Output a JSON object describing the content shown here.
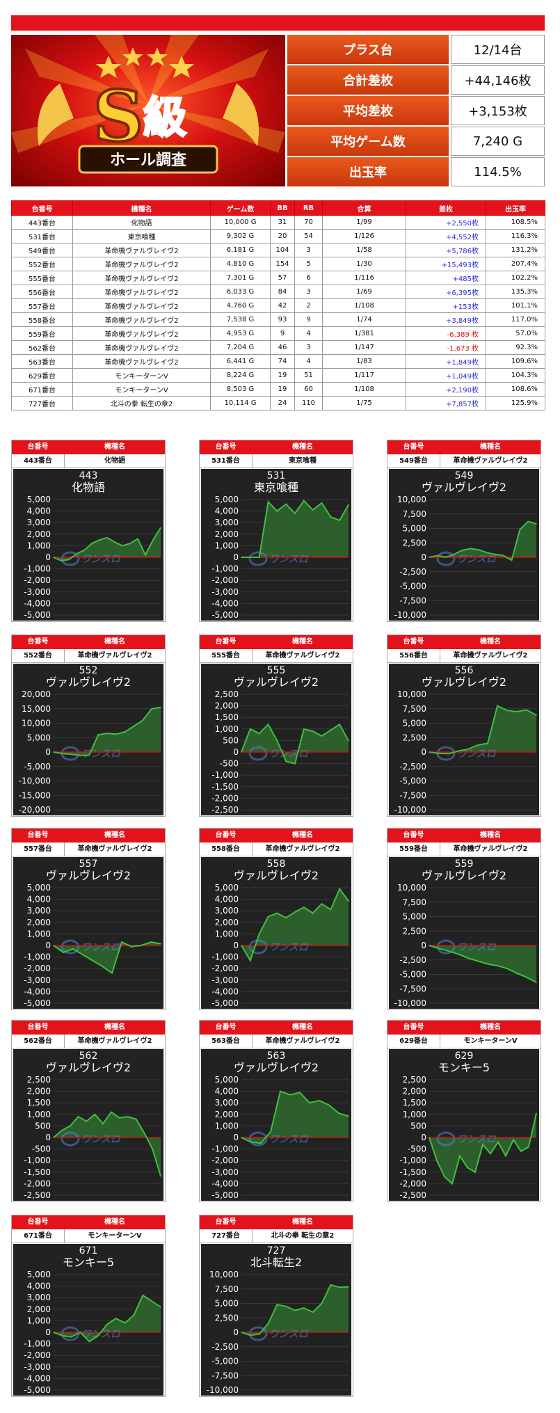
{
  "header": {
    "logo_letter": "S",
    "logo_kanji": "級",
    "logo_ribbon": "ホール調査"
  },
  "stats": [
    {
      "label": "プラス台",
      "value": "12/14台"
    },
    {
      "label": "合計差枚",
      "value": "+44,146枚"
    },
    {
      "label": "平均差枚",
      "value": "+3,153枚"
    },
    {
      "label": "平均ゲーム数",
      "value": "7,240 G"
    },
    {
      "label": "出玉率",
      "value": "114.5%"
    }
  ],
  "table": {
    "headers": [
      "台番号",
      "機種名",
      "ゲーム数",
      "BB",
      "RB",
      "合算",
      "差枚",
      "出玉率"
    ],
    "rows": [
      {
        "num": "443番台",
        "name": "化物語",
        "games": "10,000 G",
        "bb": "31",
        "rb": "70",
        "combined": "1/99",
        "diff": "+2,550枚",
        "rate": "108.5%"
      },
      {
        "num": "531番台",
        "name": "東京喰種",
        "games": "9,302 G",
        "bb": "20",
        "rb": "54",
        "combined": "1/126",
        "diff": "+4,552枚",
        "rate": "116.3%"
      },
      {
        "num": "549番台",
        "name": "革命機ヴァルヴレイヴ2",
        "games": "6,181 G",
        "bb": "104",
        "rb": "3",
        "combined": "1/58",
        "diff": "+5,786枚",
        "rate": "131.2%"
      },
      {
        "num": "552番台",
        "name": "革命機ヴァルヴレイヴ2",
        "games": "4,810 G",
        "bb": "154",
        "rb": "5",
        "combined": "1/30",
        "diff": "+15,493枚",
        "rate": "207.4%"
      },
      {
        "num": "555番台",
        "name": "革命機ヴァルヴレイヴ2",
        "games": "7,301 G",
        "bb": "57",
        "rb": "6",
        "combined": "1/116",
        "diff": "+485枚",
        "rate": "102.2%"
      },
      {
        "num": "556番台",
        "name": "革命機ヴァルヴレイヴ2",
        "games": "6,033 G",
        "bb": "84",
        "rb": "3",
        "combined": "1/69",
        "diff": "+6,395枚",
        "rate": "135.3%"
      },
      {
        "num": "557番台",
        "name": "革命機ヴァルヴレイヴ2",
        "games": "4,760 G",
        "bb": "42",
        "rb": "2",
        "combined": "1/108",
        "diff": "+153枚",
        "rate": "101.1%"
      },
      {
        "num": "558番台",
        "name": "革命機ヴァルヴレイヴ2",
        "games": "7,538 G",
        "bb": "93",
        "rb": "9",
        "combined": "1/74",
        "diff": "+3,849枚",
        "rate": "117.0%"
      },
      {
        "num": "559番台",
        "name": "革命機ヴァルヴレイヴ2",
        "games": "4,953 G",
        "bb": "9",
        "rb": "4",
        "combined": "1/381",
        "diff": "-6,389 枚",
        "rate": "57.0%"
      },
      {
        "num": "562番台",
        "name": "革命機ヴァルヴレイヴ2",
        "games": "7,204 G",
        "bb": "46",
        "rb": "3",
        "combined": "1/147",
        "diff": "-1,673 枚",
        "rate": "92.3%"
      },
      {
        "num": "563番台",
        "name": "革命機ヴァルヴレイヴ2",
        "games": "6,441 G",
        "bb": "74",
        "rb": "4",
        "combined": "1/83",
        "diff": "+1,849枚",
        "rate": "109.6%"
      },
      {
        "num": "629番台",
        "name": "モンキーターンV",
        "games": "8,224 G",
        "bb": "19",
        "rb": "51",
        "combined": "1/117",
        "diff": "+1,049枚",
        "rate": "104.3%"
      },
      {
        "num": "671番台",
        "name": "モンキーターンV",
        "games": "8,503 G",
        "bb": "19",
        "rb": "60",
        "combined": "1/108",
        "diff": "+2,190枚",
        "rate": "108.6%"
      },
      {
        "num": "727番台",
        "name": "北斗の拳 転生の章2",
        "games": "10,114 G",
        "bb": "24",
        "rb": "110",
        "combined": "1/75",
        "diff": "+7,857枚",
        "rate": "125.9%"
      }
    ]
  },
  "card_headers": {
    "num": "台番号",
    "name": "機種名"
  },
  "watermark": "ワンスロ",
  "colors": {
    "accent_red": "#e4131b",
    "header_orange": "#e0501a",
    "chart_bg": "#222222",
    "line_green": "#3fbf3f",
    "fill_green": "#2f6a2f",
    "zero_line": "#d01010",
    "positive_text": "#2a2ad0",
    "negative_text": "#e01010"
  },
  "chart_data": [
    {
      "type": "area",
      "num": "443番台",
      "name": "化物語",
      "title_num": "443",
      "title_name": "化物語",
      "ylim": [
        -5000,
        5000
      ],
      "yticks": [
        5000,
        4000,
        3000,
        2000,
        1000,
        0,
        -1000,
        -2000,
        -3000,
        -4000,
        -5000
      ],
      "ytick_labels": [
        "5,000",
        "4,000",
        "3,000",
        "2,000",
        "1,000",
        "0",
        "-1,000",
        "-2,000",
        "-3,000",
        "-4,000",
        "-5,000"
      ],
      "values": [
        0,
        -300,
        -200,
        300,
        600,
        1200,
        1500,
        1700,
        1300,
        1000,
        1200,
        1600,
        200,
        1500,
        2550
      ]
    },
    {
      "type": "area",
      "num": "531番台",
      "name": "東京喰種",
      "title_num": "531",
      "title_name": "東京喰種",
      "ylim": [
        -5000,
        5000
      ],
      "yticks": [
        5000,
        4000,
        3000,
        2000,
        1000,
        0,
        -1000,
        -2000,
        -3000,
        -4000,
        -5000
      ],
      "ytick_labels": [
        "5,000",
        "4,000",
        "3,000",
        "2,000",
        "1,000",
        "0",
        "-1,000",
        "-2,000",
        "-3,000",
        "-4,000",
        "-5,000"
      ],
      "values": [
        0,
        0,
        0,
        4800,
        4000,
        4600,
        3800,
        4900,
        4100,
        4700,
        3500,
        3200,
        4552
      ]
    },
    {
      "type": "area",
      "num": "549番台",
      "name": "革命機ヴァルヴレイヴ2",
      "title_num": "549",
      "title_name": "ヴァルヴレイヴ2",
      "ylim": [
        -10000,
        10000
      ],
      "yticks": [
        10000,
        7500,
        5000,
        2500,
        0,
        -2500,
        -5000,
        -7500,
        -10000
      ],
      "ytick_labels": [
        "10,000",
        "7,500",
        "5,000",
        "2,500",
        "0",
        "-2,500",
        "-5,000",
        "-7,500",
        "-10,000"
      ],
      "values": [
        0,
        300,
        0,
        500,
        1200,
        1500,
        1300,
        800,
        500,
        300,
        -500,
        4800,
        6200,
        5786
      ]
    },
    {
      "type": "area",
      "num": "552番台",
      "name": "革命機ヴァルヴレイヴ2",
      "title_num": "552",
      "title_name": "ヴァルヴレイヴ2",
      "ylim": [
        -20000,
        20000
      ],
      "yticks": [
        20000,
        15000,
        10000,
        5000,
        0,
        -5000,
        -10000,
        -15000,
        -20000
      ],
      "ytick_labels": [
        "20,000",
        "15,000",
        "10,000",
        "5,000",
        "0",
        "-5,000",
        "-10,000",
        "-15,000",
        "-20,000"
      ],
      "values": [
        0,
        -500,
        -800,
        -1200,
        -1000,
        6000,
        6500,
        6200,
        7000,
        9000,
        11000,
        15000,
        15493
      ]
    },
    {
      "type": "area",
      "num": "555番台",
      "name": "革命機ヴァルヴレイヴ2",
      "title_num": "555",
      "title_name": "ヴァルヴレイヴ2",
      "ylim": [
        -2500,
        2500
      ],
      "yticks": [
        2500,
        2000,
        1500,
        1000,
        500,
        0,
        -500,
        -1000,
        -1500,
        -2000,
        -2500
      ],
      "ytick_labels": [
        "2,500",
        "2,000",
        "1,500",
        "1,000",
        "500",
        "0",
        "-500",
        "-1,000",
        "-1,500",
        "-2,000",
        "-2,500"
      ],
      "values": [
        0,
        1000,
        800,
        1200,
        500,
        -400,
        -500,
        1000,
        900,
        700,
        950,
        1200,
        485
      ]
    },
    {
      "type": "area",
      "num": "556番台",
      "name": "革命機ヴァルヴレイヴ2",
      "title_num": "556",
      "title_name": "ヴァルヴレイヴ2",
      "ylim": [
        -10000,
        10000
      ],
      "yticks": [
        10000,
        7500,
        5000,
        2500,
        0,
        -2500,
        -5000,
        -7500,
        -10000
      ],
      "ytick_labels": [
        "10,000",
        "7,500",
        "5,000",
        "2,500",
        "0",
        "-2,500",
        "-5,000",
        "-7,500",
        "-10,000"
      ],
      "values": [
        0,
        -200,
        -300,
        200,
        500,
        1200,
        1500,
        8000,
        7200,
        7000,
        7300,
        6395
      ]
    },
    {
      "type": "area",
      "num": "557番台",
      "name": "革命機ヴァルヴレイヴ2",
      "title_num": "557",
      "title_name": "ヴァルヴレイヴ2",
      "ylim": [
        -5000,
        5000
      ],
      "yticks": [
        5000,
        4000,
        3000,
        2000,
        1000,
        0,
        -1000,
        -2000,
        -3000,
        -4000,
        -5000
      ],
      "ytick_labels": [
        "5,000",
        "4,000",
        "3,000",
        "2,000",
        "1,000",
        "0",
        "-1,000",
        "-2,000",
        "-3,000",
        "-4,000",
        "-5,000"
      ],
      "values": [
        0,
        -600,
        -300,
        -800,
        -1300,
        -1800,
        -2400,
        300,
        -100,
        0,
        300,
        153
      ]
    },
    {
      "type": "area",
      "num": "558番台",
      "name": "革命機ヴァルヴレイヴ2",
      "title_num": "558",
      "title_name": "ヴァルヴレイヴ2",
      "ylim": [
        -5000,
        5000
      ],
      "yticks": [
        5000,
        4000,
        3000,
        2000,
        1000,
        0,
        -1000,
        -2000,
        -3000,
        -4000,
        -5000
      ],
      "ytick_labels": [
        "5,000",
        "4,000",
        "3,000",
        "2,000",
        "1,000",
        "0",
        "-1,000",
        "-2,000",
        "-3,000",
        "-4,000",
        "-5,000"
      ],
      "values": [
        0,
        -1300,
        1000,
        2500,
        2800,
        2400,
        2900,
        3300,
        2800,
        3600,
        3100,
        4900,
        3849
      ]
    },
    {
      "type": "area",
      "num": "559番台",
      "name": "革命機ヴァルヴレイヴ2",
      "title_num": "559",
      "title_name": "ヴァルヴレイヴ2",
      "ylim": [
        -10000,
        10000
      ],
      "yticks": [
        10000,
        7500,
        5000,
        2500,
        0,
        -2500,
        -5000,
        -7500,
        -10000
      ],
      "ytick_labels": [
        "10,000",
        "7,500",
        "5,000",
        "2,500",
        "0",
        "-2,500",
        "-5,000",
        "-7,500",
        "-10,000"
      ],
      "values": [
        0,
        -500,
        -1000,
        -1500,
        -2200,
        -2700,
        -3200,
        -3500,
        -4000,
        -4800,
        -5500,
        -6389
      ]
    },
    {
      "type": "area",
      "num": "562番台",
      "name": "革命機ヴァルヴレイヴ2",
      "title_num": "562",
      "title_name": "ヴァルヴレイヴ2",
      "ylim": [
        -2500,
        2500
      ],
      "yticks": [
        2500,
        2000,
        1500,
        1000,
        500,
        0,
        -500,
        -1000,
        -1500,
        -2000,
        -2500
      ],
      "ytick_labels": [
        "2,500",
        "2,000",
        "1,500",
        "1,000",
        "500",
        "0",
        "-500",
        "-1,000",
        "-1,500",
        "-2,000",
        "-2,500"
      ],
      "values": [
        0,
        300,
        500,
        900,
        700,
        1000,
        600,
        1100,
        850,
        900,
        800,
        200,
        -500,
        -1673
      ]
    },
    {
      "type": "area",
      "num": "563番台",
      "name": "革命機ヴァルヴレイヴ2",
      "title_num": "563",
      "title_name": "ヴァルヴレイヴ2",
      "ylim": [
        -5000,
        5000
      ],
      "yticks": [
        5000,
        4000,
        3000,
        2000,
        1000,
        0,
        -1000,
        -2000,
        -3000,
        -4000,
        -5000
      ],
      "ytick_labels": [
        "5,000",
        "4,000",
        "3,000",
        "2,000",
        "1,000",
        "0",
        "-1,000",
        "-2,000",
        "-3,000",
        "-4,000",
        "-5,000"
      ],
      "values": [
        0,
        -400,
        -500,
        500,
        4000,
        3700,
        3900,
        3000,
        3200,
        2800,
        2100,
        1849
      ]
    },
    {
      "type": "area",
      "num": "629番台",
      "name": "モンキーターンV",
      "title_num": "629",
      "title_name": "モンキー5",
      "ylim": [
        -2500,
        2500
      ],
      "yticks": [
        2500,
        2000,
        1500,
        1000,
        500,
        0,
        -500,
        -1000,
        -1500,
        -2000,
        -2500
      ],
      "ytick_labels": [
        "2,500",
        "2,000",
        "1,500",
        "1,000",
        "500",
        "0",
        "-500",
        "-1,000",
        "-1,500",
        "-2,000",
        "-2,500"
      ],
      "values": [
        0,
        -1000,
        -1700,
        -2000,
        -800,
        -1300,
        -1500,
        -300,
        -700,
        -200,
        -800,
        -100,
        -600,
        -400,
        1049
      ]
    },
    {
      "type": "area",
      "num": "671番台",
      "name": "モンキーターンV",
      "title_num": "671",
      "title_name": "モンキー5",
      "ylim": [
        -5000,
        5000
      ],
      "yticks": [
        5000,
        4000,
        3000,
        2000,
        1000,
        0,
        -1000,
        -2000,
        -3000,
        -4000,
        -5000
      ],
      "ytick_labels": [
        "5,000",
        "4,000",
        "3,000",
        "2,000",
        "1,000",
        "0",
        "-1,000",
        "-2,000",
        "-3,000",
        "-4,000",
        "-5,000"
      ],
      "values": [
        0,
        -300,
        -400,
        0,
        -800,
        -300,
        700,
        1200,
        800,
        1500,
        3200,
        2700,
        2190
      ]
    },
    {
      "type": "area",
      "num": "727番台",
      "name": "北斗の拳 転生の章2",
      "title_num": "727",
      "title_name": "北斗転生2",
      "ylim": [
        -10000,
        10000
      ],
      "yticks": [
        10000,
        7500,
        5000,
        2500,
        0,
        -2500,
        -5000,
        -7500,
        -10000
      ],
      "ytick_labels": [
        "10,000",
        "7,500",
        "5,000",
        "2,500",
        "0",
        "-2,500",
        "-5,000",
        "-7,500",
        "-10,000"
      ],
      "values": [
        0,
        -500,
        -300,
        1500,
        4800,
        4500,
        3800,
        4200,
        3500,
        5000,
        8200,
        7800,
        7857
      ]
    }
  ]
}
